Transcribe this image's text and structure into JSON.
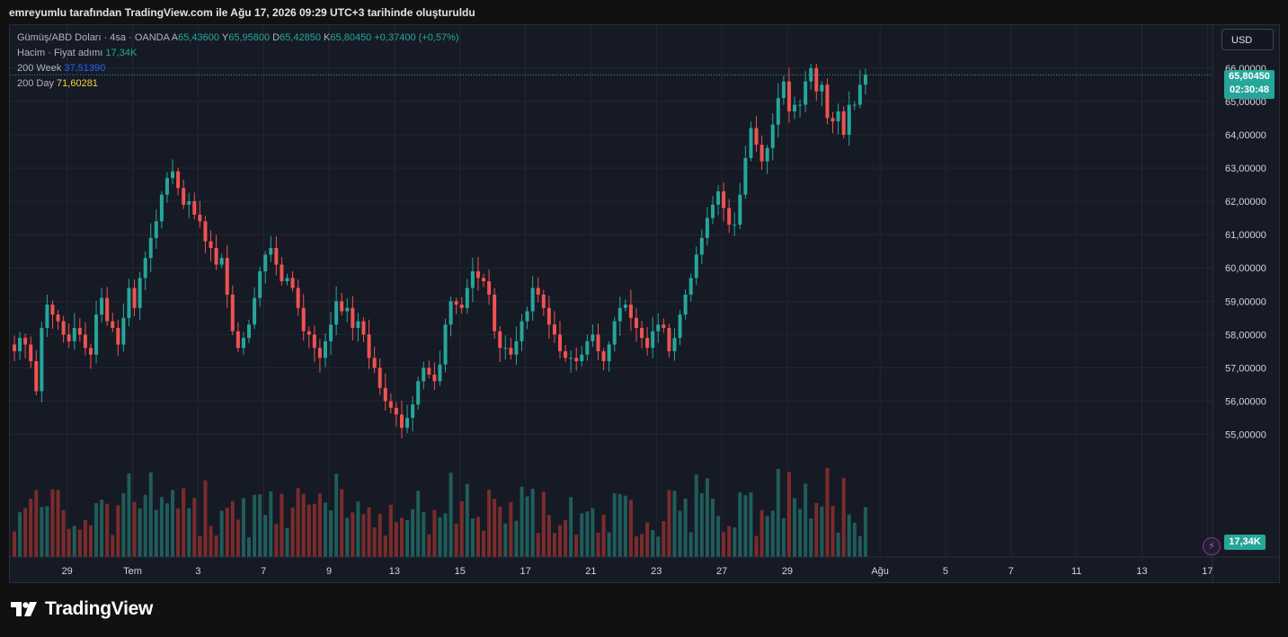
{
  "header": {
    "caption": "emreyumlu tarafından TradingView.com ile Ağu 17, 2026 09:29 UTC+3 tarihinde oluşturuldu"
  },
  "legend": {
    "symbol": "Gümüş/ABD Doları · 4sa · OANDA",
    "a_label": "A",
    "a_value": "65,43600",
    "y_label": "Y",
    "y_value": "65,95800",
    "d_label": "D",
    "d_value": "65,42850",
    "k_label": "K",
    "k_value": "65,80450",
    "change": "+0,37400 (+0,57%)",
    "volume_label": "Hacim · Fiyat adımı",
    "volume_value": "17,34K",
    "ma_week_label": "200 Week",
    "ma_week_value": "37,51390",
    "ma_day_label": "200 Day",
    "ma_day_value": "71,60281"
  },
  "toolbar": {
    "currency": "USD"
  },
  "price_tag": {
    "price": "65,80450",
    "countdown": "02:30:48"
  },
  "volume_tag": "17,34K",
  "brand": {
    "name": "TradingView",
    "logo_icon": "tradingview-logo-icon"
  },
  "colors": {
    "up": "#26a69a",
    "down": "#ef5350",
    "ma_week": "#2962ff",
    "ma_day": "#f5d142"
  },
  "chart_data": {
    "type": "candlestick",
    "interval": "4h",
    "price_axis": {
      "ylim": [
        54.45,
        66.75
      ],
      "ticks": [
        55,
        56,
        57,
        58,
        59,
        60,
        61,
        62,
        63,
        64,
        65,
        66
      ],
      "tick_labels": [
        "55,00000",
        "56,00000",
        "57,00000",
        "58,00000",
        "59,00000",
        "60,00000",
        "61,00000",
        "62,00000",
        "63,00000",
        "64,00000",
        "65,00000",
        "66,00000"
      ]
    },
    "time_axis": {
      "labels": [
        {
          "label": "29",
          "bar": 10
        },
        {
          "label": "Tem",
          "bar": 22
        },
        {
          "label": "3",
          "bar": 34
        },
        {
          "label": "7",
          "bar": 46
        },
        {
          "label": "9",
          "bar": 58
        },
        {
          "label": "13",
          "bar": 70
        },
        {
          "label": "15",
          "bar": 82
        },
        {
          "label": "17",
          "bar": 94
        },
        {
          "label": "21",
          "bar": 106
        },
        {
          "label": "23",
          "bar": 118
        },
        {
          "label": "27",
          "bar": 130
        },
        {
          "label": "29",
          "bar": 142
        },
        {
          "label": "Ağu",
          "bar": 159
        },
        {
          "label": "5",
          "bar": 171
        },
        {
          "label": "7",
          "bar": 183
        },
        {
          "label": "11",
          "bar": 195
        },
        {
          "label": "13",
          "bar": 207
        },
        {
          "label": "17",
          "bar": 219
        }
      ]
    },
    "close_series": [
      57.5,
      57.9,
      57.7,
      57.2,
      56.3,
      58.2,
      58.9,
      58.6,
      58.4,
      58.0,
      57.8,
      58.2,
      58.0,
      57.6,
      57.4,
      58.6,
      59.1,
      58.4,
      58.2,
      57.7,
      58.5,
      59.4,
      58.8,
      59.7,
      60.3,
      60.9,
      61.4,
      62.2,
      62.7,
      62.9,
      62.4,
      61.9,
      62.0,
      61.6,
      61.4,
      60.8,
      60.6,
      60.1,
      60.3,
      59.2,
      58.1,
      57.6,
      57.9,
      58.3,
      59.1,
      59.9,
      60.4,
      60.6,
      60.1,
      59.6,
      59.7,
      59.4,
      58.8,
      58.1,
      58.0,
      57.6,
      57.3,
      57.8,
      58.3,
      59.0,
      58.7,
      58.8,
      58.2,
      58.4,
      58.0,
      57.3,
      57.0,
      56.4,
      56.0,
      55.8,
      55.6,
      55.2,
      55.5,
      55.9,
      56.6,
      57.0,
      56.8,
      56.6,
      57.1,
      58.3,
      59.0,
      58.9,
      58.8,
      59.4,
      59.9,
      59.7,
      59.6,
      59.2,
      58.1,
      57.6,
      57.6,
      57.4,
      57.8,
      58.4,
      58.7,
      59.4,
      59.2,
      58.8,
      58.3,
      58.0,
      57.5,
      57.3,
      57.3,
      57.2,
      57.4,
      57.8,
      58.0,
      57.5,
      57.2,
      57.7,
      58.4,
      58.8,
      58.9,
      58.5,
      58.2,
      57.9,
      57.6,
      58.1,
      58.3,
      58.2,
      57.5,
      57.9,
      58.6,
      59.2,
      59.7,
      60.4,
      60.9,
      61.5,
      61.9,
      62.3,
      61.8,
      61.3,
      61.3,
      62.2,
      63.3,
      64.2,
      63.7,
      63.2,
      63.6,
      64.3,
      65.1,
      65.6,
      64.7,
      64.9,
      64.9,
      65.6,
      66.0,
      65.3,
      65.5,
      64.5,
      64.4,
      64.7,
      64.0,
      64.9,
      64.9,
      65.5,
      65.8
    ]
  }
}
